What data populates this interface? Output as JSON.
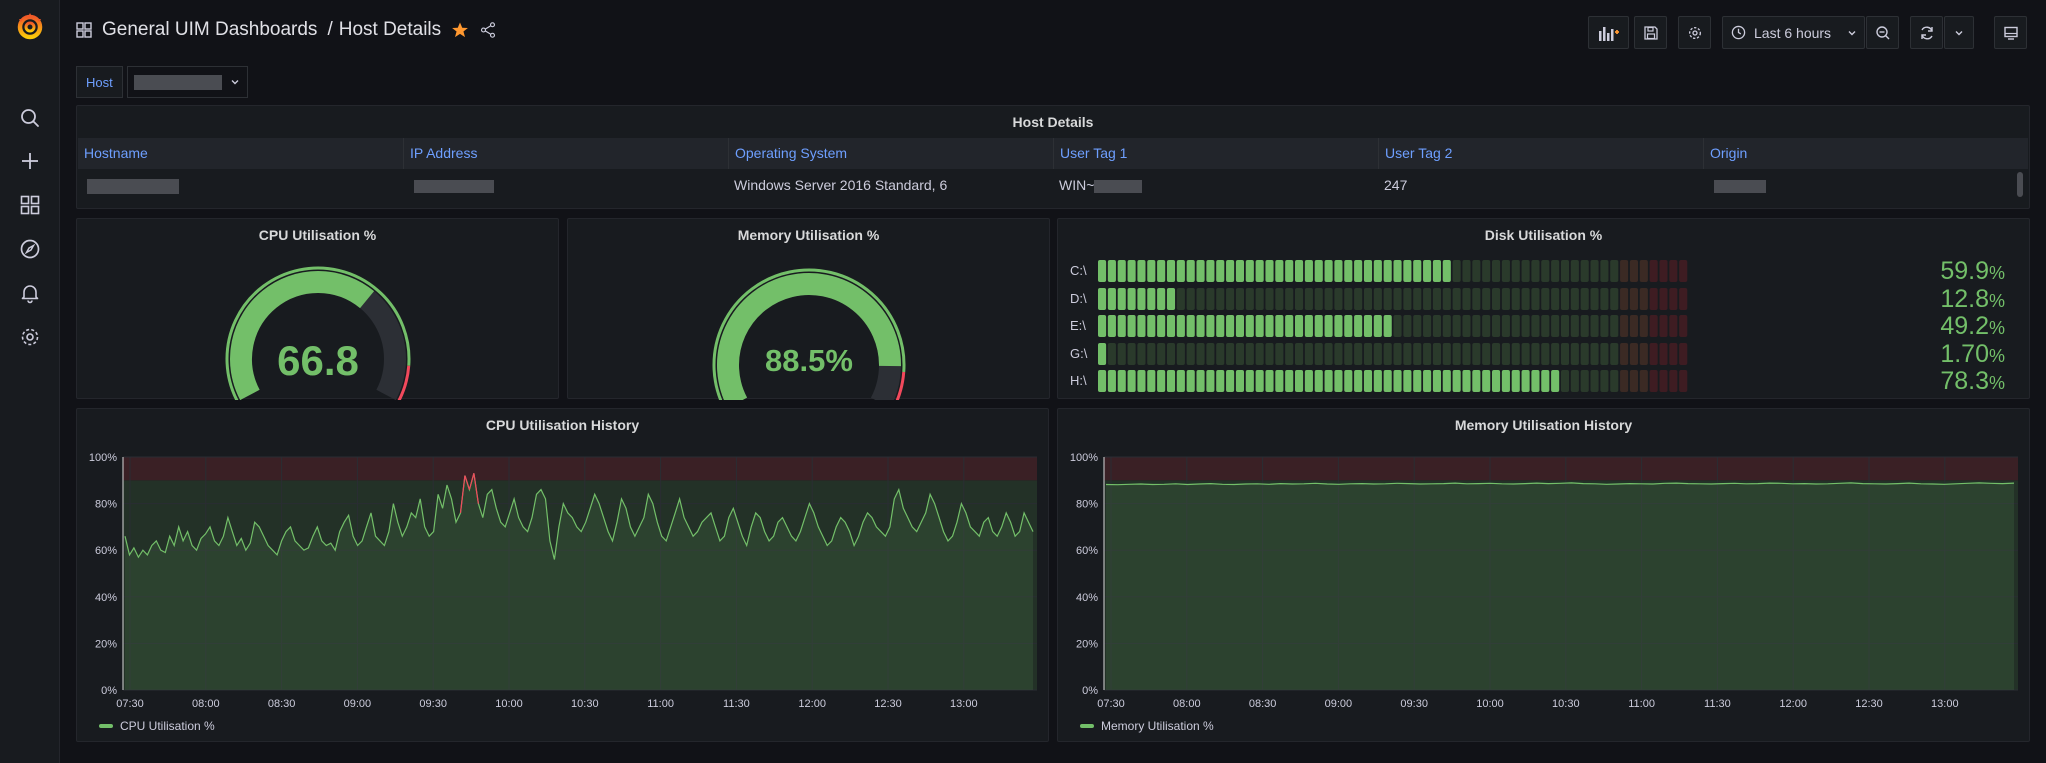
{
  "breadcrumb": {
    "folder": "General UIM Dashboards",
    "separator": "/",
    "dashboard": "Host Details"
  },
  "toolbar": {
    "time_range": "Last 6 hours"
  },
  "variables": {
    "host_label": "Host"
  },
  "table": {
    "title": "Host Details",
    "columns": [
      "Hostname",
      "IP Address",
      "Operating System",
      "User Tag 1",
      "User Tag 2",
      "Origin"
    ],
    "row": {
      "os": "Windows Server 2016 Standard, 6",
      "user_tag_1": "WIN~",
      "user_tag_2": "247"
    }
  },
  "cpu_gauge": {
    "title": "CPU Utilisation %",
    "value": 66.8,
    "display": "66.8"
  },
  "mem_gauge": {
    "title": "Memory Utilisation %",
    "value": 88.5,
    "display": "88.5%"
  },
  "disk": {
    "title": "Disk Utilisation %",
    "drives": [
      {
        "label": "C:\\",
        "value": 59.9,
        "display": "59.9",
        "unit": "%"
      },
      {
        "label": "D:\\",
        "value": 12.8,
        "display": "12.8",
        "unit": "%"
      },
      {
        "label": "E:\\",
        "value": 49.2,
        "display": "49.2",
        "unit": "%"
      },
      {
        "label": "G:\\",
        "value": 1.7,
        "display": "1.70",
        "unit": "%"
      },
      {
        "label": "H:\\",
        "value": 78.3,
        "display": "78.3",
        "unit": "%"
      }
    ]
  },
  "cpu_history": {
    "title": "CPU Utilisation History",
    "legend": "CPU Utilisation %"
  },
  "mem_history": {
    "title": "Memory Utilisation History",
    "legend": "Memory Utilisation %"
  },
  "colors": {
    "green": "#73bf69",
    "red": "#f2495c",
    "accent_blue": "#6e9fff",
    "star": "#ff9830"
  },
  "chart_data": [
    {
      "type": "line",
      "title": "CPU Utilisation History",
      "y_ticks": [
        "0%",
        "20%",
        "40%",
        "60%",
        "80%",
        "100%"
      ],
      "x_ticks": [
        "07:30",
        "08:00",
        "08:30",
        "09:00",
        "09:30",
        "10:00",
        "10:30",
        "11:00",
        "11:30",
        "12:00",
        "12:30",
        "13:00"
      ],
      "ylim": [
        0,
        100
      ],
      "thresholds": {
        "red_above": 90
      },
      "series": [
        {
          "name": "CPU Utilisation %",
          "values": [
            66,
            58,
            61,
            57,
            60,
            58,
            62,
            64,
            60,
            59,
            66,
            62,
            70,
            64,
            68,
            62,
            60,
            65,
            67,
            70,
            64,
            62,
            66,
            74,
            68,
            62,
            65,
            60,
            63,
            72,
            70,
            66,
            62,
            60,
            58,
            64,
            68,
            70,
            64,
            62,
            60,
            61,
            66,
            70,
            64,
            62,
            63,
            60,
            68,
            72,
            75,
            66,
            62,
            64,
            70,
            76,
            66,
            64,
            62,
            68,
            80,
            72,
            66,
            70,
            76,
            74,
            82,
            70,
            66,
            68,
            84,
            78,
            88,
            82,
            72,
            76,
            92,
            86,
            93,
            80,
            74,
            84,
            86,
            78,
            72,
            70,
            76,
            82,
            74,
            70,
            68,
            74,
            84,
            86,
            82,
            64,
            56,
            70,
            80,
            76,
            74,
            70,
            68,
            72,
            78,
            84,
            80,
            74,
            68,
            64,
            72,
            82,
            78,
            70,
            66,
            70,
            74,
            84,
            80,
            72,
            66,
            64,
            70,
            76,
            82,
            74,
            70,
            66,
            68,
            72,
            74,
            76,
            70,
            64,
            66,
            74,
            78,
            72,
            66,
            62,
            70,
            76,
            74,
            68,
            64,
            66,
            72,
            74,
            70,
            66,
            64,
            68,
            74,
            80,
            76,
            70,
            66,
            62,
            64,
            70,
            74,
            72,
            68,
            62,
            66,
            72,
            76,
            74,
            70,
            68,
            66,
            70,
            82,
            86,
            78,
            74,
            70,
            68,
            72,
            76,
            84,
            80,
            74,
            68,
            64,
            66,
            72,
            80,
            76,
            70,
            68,
            66,
            72,
            74,
            68,
            66,
            70,
            76,
            72,
            66,
            68,
            76,
            72,
            68
          ]
        }
      ]
    },
    {
      "type": "line",
      "title": "Memory Utilisation History",
      "y_ticks": [
        "0%",
        "20%",
        "40%",
        "60%",
        "80%",
        "100%"
      ],
      "x_ticks": [
        "07:30",
        "08:00",
        "08:30",
        "09:00",
        "09:30",
        "10:00",
        "10:30",
        "11:00",
        "11:30",
        "12:00",
        "12:30",
        "13:00"
      ],
      "ylim": [
        0,
        100
      ],
      "thresholds": {
        "red_above": 90
      },
      "series": [
        {
          "name": "Memory Utilisation %",
          "values": [
            88.2,
            88.1,
            88.3,
            88.4,
            88.2,
            88.3,
            88.5,
            88.2,
            88.4,
            88.6,
            88.3,
            88.2,
            88.4,
            88.5,
            88.3,
            88.6,
            88.4,
            88.5,
            88.7,
            88.4,
            88.3,
            88.5,
            88.6,
            88.4,
            88.5,
            88.7,
            88.6,
            88.4,
            88.5,
            88.6,
            88.8,
            88.5,
            88.6,
            88.7,
            88.5,
            88.4,
            88.6,
            88.8,
            88.6,
            88.7,
            88.9,
            88.6,
            88.5,
            88.3,
            88.4,
            88.6,
            88.5,
            88.4,
            88.7,
            88.8,
            88.6,
            88.5,
            88.4,
            88.6,
            88.7,
            88.5,
            88.6,
            88.8,
            88.7,
            88.5,
            88.6,
            88.4,
            88.5,
            88.7,
            88.9,
            88.6,
            88.5,
            88.4,
            88.6,
            88.8,
            88.5,
            88.4,
            88.3,
            88.5,
            88.7,
            88.9,
            88.7,
            88.6,
            88.8
          ]
        }
      ]
    }
  ]
}
